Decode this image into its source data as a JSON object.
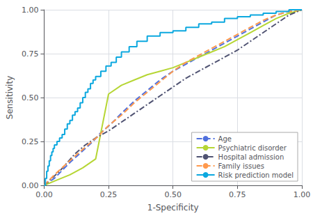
{
  "chart_data": {
    "type": "line",
    "xlabel": "1-Specificity",
    "ylabel": "Sensitivity",
    "xlim": [
      0.0,
      1.0
    ],
    "ylim": [
      0.0,
      1.0
    ],
    "xticks": [
      {
        "value": 0.0,
        "label": "0.00"
      },
      {
        "value": 0.25,
        "label": "0.25"
      },
      {
        "value": 0.5,
        "label": "0.50"
      },
      {
        "value": 0.75,
        "label": "0.75"
      },
      {
        "value": 1.0,
        "label": "1.00"
      }
    ],
    "yticks": [
      {
        "value": 0.0,
        "label": "0.00"
      },
      {
        "value": 0.25,
        "label": "0.25"
      },
      {
        "value": 0.5,
        "label": "0.50"
      },
      {
        "value": 0.75,
        "label": "0.75"
      },
      {
        "value": 1.0,
        "label": "1.00"
      }
    ],
    "grid": true,
    "legend": "lower right",
    "series": [
      {
        "name": "Age",
        "line_style": "dashed",
        "x": [
          0.0,
          0.02,
          0.04,
          0.06,
          0.08,
          0.1,
          0.13,
          0.16,
          0.19,
          0.22,
          0.26,
          0.3,
          0.35,
          0.4,
          0.45,
          0.5,
          0.55,
          0.6,
          0.65,
          0.7,
          0.75,
          0.8,
          0.85,
          0.9,
          0.95,
          1.0
        ],
        "values": [
          0.0,
          0.02,
          0.04,
          0.07,
          0.1,
          0.13,
          0.17,
          0.21,
          0.25,
          0.3,
          0.35,
          0.41,
          0.48,
          0.54,
          0.6,
          0.65,
          0.69,
          0.73,
          0.77,
          0.81,
          0.85,
          0.89,
          0.93,
          0.97,
          0.99,
          1.0
        ]
      },
      {
        "name": "Psychiatric disorder",
        "line_style": "solid",
        "x": [
          0.0,
          0.05,
          0.1,
          0.15,
          0.2,
          0.25,
          0.3,
          0.35,
          0.4,
          0.45,
          0.5,
          0.55,
          0.6,
          0.65,
          0.7,
          0.75,
          0.8,
          0.85,
          0.9,
          0.95,
          1.0
        ],
        "values": [
          0.0,
          0.03,
          0.06,
          0.1,
          0.15,
          0.52,
          0.57,
          0.6,
          0.63,
          0.65,
          0.67,
          0.7,
          0.73,
          0.76,
          0.79,
          0.83,
          0.87,
          0.91,
          0.95,
          0.98,
          1.0
        ]
      },
      {
        "name": "Hospital admission",
        "line_style": "dashdot",
        "x": [
          0.0,
          0.03,
          0.06,
          0.09,
          0.12,
          0.16,
          0.2,
          0.25,
          0.3,
          0.35,
          0.4,
          0.45,
          0.5,
          0.55,
          0.6,
          0.65,
          0.7,
          0.75,
          0.8,
          0.85,
          0.9,
          0.95,
          1.0
        ],
        "values": [
          0.0,
          0.04,
          0.08,
          0.13,
          0.18,
          0.23,
          0.27,
          0.31,
          0.36,
          0.41,
          0.46,
          0.51,
          0.56,
          0.61,
          0.65,
          0.69,
          0.73,
          0.77,
          0.82,
          0.87,
          0.92,
          0.97,
          1.0
        ]
      },
      {
        "name": "Family issues",
        "line_style": "dashed",
        "x": [
          0.0,
          0.02,
          0.04,
          0.07,
          0.1,
          0.13,
          0.17,
          0.21,
          0.25,
          0.3,
          0.35,
          0.4,
          0.45,
          0.5,
          0.55,
          0.6,
          0.65,
          0.7,
          0.75,
          0.8,
          0.85,
          0.9,
          0.95,
          1.0
        ],
        "values": [
          0.0,
          0.03,
          0.06,
          0.1,
          0.14,
          0.18,
          0.23,
          0.28,
          0.34,
          0.4,
          0.47,
          0.53,
          0.59,
          0.65,
          0.7,
          0.74,
          0.78,
          0.82,
          0.86,
          0.9,
          0.94,
          0.97,
          0.99,
          1.0
        ]
      },
      {
        "name": "Risk prediction model",
        "line_style": "solid",
        "type": "step",
        "x": [
          0.0,
          0.005,
          0.01,
          0.015,
          0.02,
          0.025,
          0.03,
          0.035,
          0.04,
          0.05,
          0.06,
          0.07,
          0.08,
          0.09,
          0.1,
          0.11,
          0.12,
          0.13,
          0.14,
          0.15,
          0.16,
          0.17,
          0.18,
          0.19,
          0.2,
          0.22,
          0.24,
          0.26,
          0.28,
          0.3,
          0.33,
          0.36,
          0.4,
          0.45,
          0.5,
          0.55,
          0.6,
          0.65,
          0.7,
          0.75,
          0.8,
          0.85,
          0.9,
          0.95,
          1.0
        ],
        "values": [
          0.0,
          0.04,
          0.08,
          0.11,
          0.14,
          0.17,
          0.19,
          0.21,
          0.23,
          0.25,
          0.27,
          0.29,
          0.32,
          0.35,
          0.37,
          0.4,
          0.42,
          0.44,
          0.47,
          0.5,
          0.53,
          0.55,
          0.58,
          0.6,
          0.62,
          0.65,
          0.68,
          0.7,
          0.73,
          0.76,
          0.79,
          0.82,
          0.85,
          0.87,
          0.88,
          0.9,
          0.92,
          0.93,
          0.95,
          0.96,
          0.97,
          0.98,
          0.99,
          1.0,
          1.0
        ]
      }
    ]
  }
}
